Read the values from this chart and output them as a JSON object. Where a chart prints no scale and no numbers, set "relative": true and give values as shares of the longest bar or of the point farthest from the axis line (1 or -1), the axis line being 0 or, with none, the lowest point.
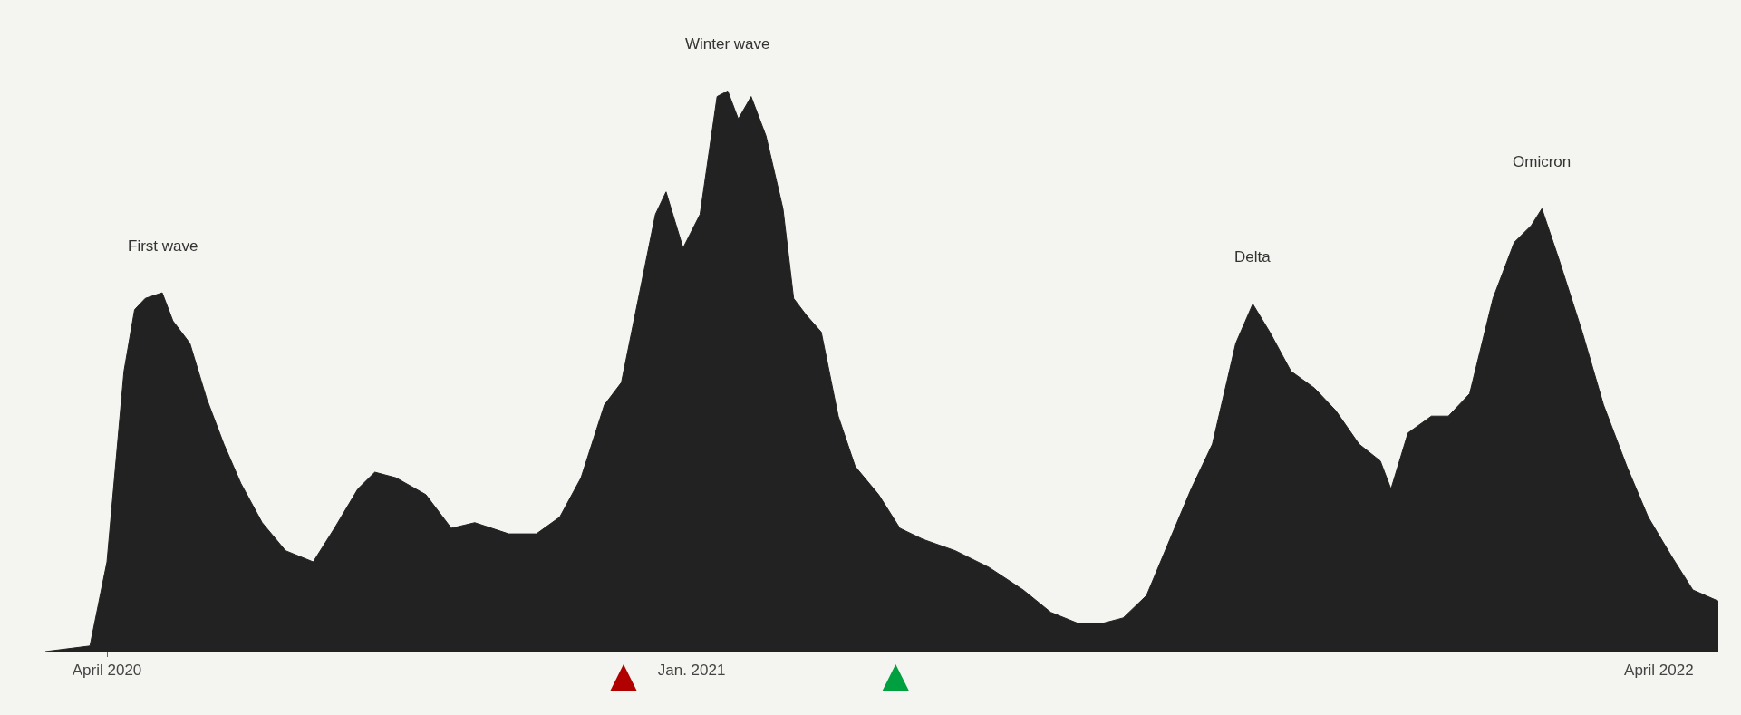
{
  "chart_data": {
    "type": "area",
    "relative": true,
    "grid": false,
    "x": [
      "2020-03-03",
      "2020-03-24",
      "2020-04-01",
      "2020-04-09",
      "2020-04-14",
      "2020-04-19",
      "2020-04-27",
      "2020-05-02",
      "2020-05-10",
      "2020-05-18",
      "2020-05-26",
      "2020-06-03",
      "2020-06-13",
      "2020-06-24",
      "2020-07-07",
      "2020-07-17",
      "2020-07-28",
      "2020-08-05",
      "2020-08-15",
      "2020-08-29",
      "2020-09-10",
      "2020-09-21",
      "2020-10-07",
      "2020-10-20",
      "2020-10-31",
      "2020-11-10",
      "2020-11-21",
      "2020-11-29",
      "2020-12-07",
      "2020-12-15",
      "2020-12-20",
      "2020-12-28",
      "2021-01-05",
      "2021-01-13",
      "2021-01-18",
      "2021-01-23",
      "2021-01-29",
      "2021-02-05",
      "2021-02-13",
      "2021-02-18",
      "2021-02-24",
      "2021-03-03",
      "2021-03-11",
      "2021-03-19",
      "2021-03-30",
      "2021-04-09",
      "2021-04-20",
      "2021-05-05",
      "2021-05-21",
      "2021-06-06",
      "2021-06-19",
      "2021-07-02",
      "2021-07-13",
      "2021-07-23",
      "2021-08-03",
      "2021-08-14",
      "2021-08-24",
      "2021-09-03",
      "2021-09-14",
      "2021-09-22",
      "2021-09-30",
      "2021-10-10",
      "2021-10-21",
      "2021-10-31",
      "2021-11-11",
      "2021-11-21",
      "2021-11-26",
      "2021-12-04",
      "2021-12-15",
      "2021-12-23",
      "2022-01-02",
      "2022-01-13",
      "2022-01-23",
      "2022-01-31",
      "2022-02-05",
      "2022-02-13",
      "2022-02-24",
      "2022-03-06",
      "2022-03-17",
      "2022-03-27",
      "2022-04-07",
      "2022-04-17",
      "2022-04-29"
    ],
    "series": [
      {
        "color": "#222222",
        "values": [
          0.0,
          0.01,
          0.16,
          0.5,
          0.61,
          0.63,
          0.64,
          0.59,
          0.55,
          0.45,
          0.37,
          0.3,
          0.23,
          0.18,
          0.16,
          0.22,
          0.29,
          0.32,
          0.31,
          0.28,
          0.22,
          0.23,
          0.21,
          0.21,
          0.24,
          0.31,
          0.44,
          0.48,
          0.63,
          0.78,
          0.82,
          0.72,
          0.78,
          0.99,
          1.0,
          0.95,
          0.99,
          0.92,
          0.79,
          0.63,
          0.6,
          0.57,
          0.42,
          0.33,
          0.28,
          0.22,
          0.2,
          0.18,
          0.15,
          0.11,
          0.07,
          0.05,
          0.05,
          0.06,
          0.1,
          0.2,
          0.29,
          0.37,
          0.55,
          0.62,
          0.57,
          0.5,
          0.47,
          0.43,
          0.37,
          0.34,
          0.29,
          0.39,
          0.42,
          0.42,
          0.46,
          0.63,
          0.73,
          0.76,
          0.79,
          0.7,
          0.57,
          0.44,
          0.33,
          0.24,
          0.17,
          0.11,
          0.09
        ]
      }
    ],
    "xlim": [
      "2020-03-03",
      "2022-04-29"
    ],
    "xticks": [
      {
        "value": "2020-04-01",
        "label": "April 2020"
      },
      {
        "value": "2021-01-01",
        "label": "Jan. 2021"
      },
      {
        "value": "2022-04-01",
        "label": "April 2022"
      }
    ],
    "annotations": [
      {
        "text": "First wave",
        "x": "2020-04-27",
        "y": 0.64
      },
      {
        "text": "Winter wave",
        "x": "2021-01-18",
        "y": 1.0
      },
      {
        "text": "Delta",
        "x": "2021-09-22",
        "y": 0.62
      },
      {
        "text": "Omicron",
        "x": "2022-02-05",
        "y": 0.79
      }
    ]
  }
}
